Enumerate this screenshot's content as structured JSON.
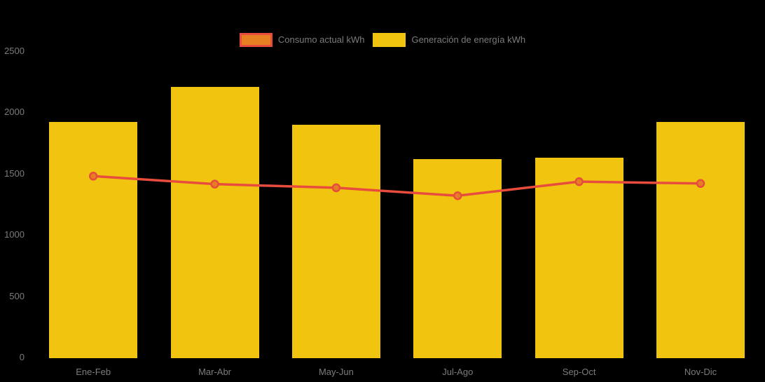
{
  "background_color": "#000000",
  "text_color": "#7b7b7b",
  "legend": {
    "position": "top-center",
    "items": [
      {
        "label": "Consumo actual kWh",
        "series_index": 0
      },
      {
        "label": "Generación de energía kWh",
        "series_index": 1
      }
    ]
  },
  "chart_data": {
    "type": "bar",
    "title": "",
    "xlabel": "",
    "ylabel": "",
    "categories": [
      "Ene-Feb",
      "Mar-Abr",
      "May-Jun",
      "Jul-Ago",
      "Sep-Oct",
      "Nov-Dic"
    ],
    "series": [
      {
        "name": "Consumo actual kWh",
        "type": "line",
        "values": [
          1480,
          1415,
          1385,
          1320,
          1435,
          1420
        ],
        "line_color": "#E74C3C",
        "point_fill_color": "#E67E22",
        "point_border_color": "#E74C3C"
      },
      {
        "name": "Generación de energía kWh",
        "type": "bar",
        "values": [
          1920,
          2210,
          1900,
          1620,
          1630,
          1920
        ],
        "bar_color": "#F1C40F"
      }
    ],
    "ylim": [
      0,
      2500
    ],
    "yticks": [
      0,
      500,
      1000,
      1500,
      2000,
      2500
    ],
    "grid": false,
    "legend_position": "top"
  }
}
